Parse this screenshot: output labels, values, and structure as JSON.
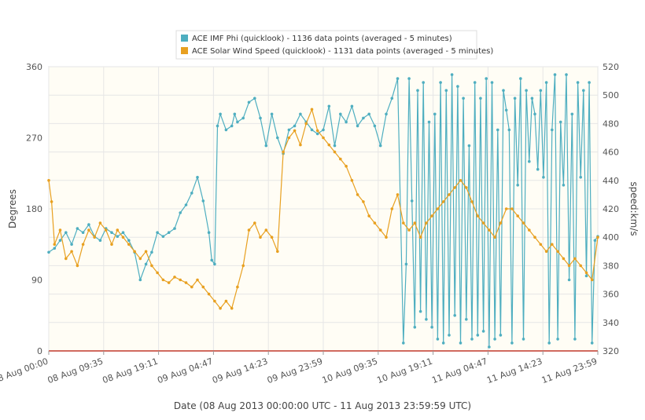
{
  "chart_data": {
    "type": "line",
    "xlabel": "Date (08 Aug 2013 00:00:00 UTC - 11 Aug 2013 23:59:59 UTC)",
    "x_ticks": [
      "08 Aug 00:00",
      "08 Aug 09:35",
      "08 Aug 19:11",
      "09 Aug 04:47",
      "09 Aug 14:23",
      "09 Aug 23:59",
      "10 Aug 09:35",
      "10 Aug 19:11",
      "11 Aug 04:47",
      "11 Aug 14:23",
      "11 Aug 23:59"
    ],
    "xlim_hours": [
      0,
      96
    ],
    "y_left": {
      "label": "Degrees",
      "range": [
        0,
        360
      ],
      "ticks": [
        "0",
        "90",
        "180",
        "270",
        "360"
      ]
    },
    "y_right": {
      "label": "speed:km/s",
      "range": [
        320,
        520
      ],
      "ticks": [
        "320",
        "340",
        "360",
        "380",
        "400",
        "420",
        "440",
        "460",
        "480",
        "500",
        "520"
      ]
    },
    "grid": true,
    "legend_position": "top-center",
    "series": [
      {
        "name": "ACE IMF Phi (quicklook) - 1136 data points (averaged - 5 minutes)",
        "axis": "left",
        "color": "#4eaec0",
        "x": [
          0,
          1,
          2,
          3,
          4,
          5,
          6,
          7,
          8,
          9,
          10,
          11,
          12,
          13,
          14,
          15,
          16,
          17,
          18,
          19,
          20,
          21,
          22,
          23,
          24,
          25,
          26,
          27,
          28,
          28.5,
          29,
          29.5,
          30,
          31,
          32,
          32.5,
          33,
          34,
          35,
          36,
          37,
          38,
          39,
          40,
          41,
          42,
          43,
          44,
          45,
          46,
          47,
          48,
          49,
          50,
          51,
          52,
          53,
          54,
          55,
          56,
          57,
          58,
          59,
          60,
          61,
          62,
          62.5,
          63,
          63.5,
          64,
          64.5,
          65,
          65.5,
          66,
          66.5,
          67,
          67.5,
          68,
          68.5,
          69,
          69.5,
          70,
          70.5,
          71,
          71.5,
          72,
          72.5,
          73,
          73.5,
          74,
          74.5,
          75,
          75.5,
          76,
          76.5,
          77,
          77.5,
          78,
          78.5,
          79,
          79.5,
          80,
          80.5,
          81,
          81.5,
          82,
          82.5,
          83,
          83.5,
          84,
          84.5,
          85,
          85.5,
          86,
          86.5,
          87,
          87.5,
          88,
          88.5,
          89,
          89.5,
          90,
          90.5,
          91,
          91.5,
          92,
          92.5,
          93,
          93.5,
          94,
          94.5,
          95,
          95.5,
          96
        ],
        "values": [
          125,
          130,
          140,
          150,
          135,
          155,
          150,
          160,
          145,
          140,
          155,
          150,
          145,
          150,
          140,
          125,
          90,
          110,
          125,
          150,
          145,
          150,
          155,
          175,
          185,
          200,
          220,
          190,
          150,
          115,
          110,
          285,
          300,
          280,
          285,
          300,
          290,
          295,
          315,
          320,
          295,
          260,
          300,
          270,
          250,
          280,
          285,
          300,
          290,
          280,
          275,
          280,
          310,
          260,
          300,
          290,
          310,
          285,
          295,
          300,
          285,
          260,
          300,
          320,
          345,
          10,
          110,
          345,
          190,
          30,
          330,
          50,
          340,
          40,
          290,
          30,
          300,
          15,
          340,
          10,
          330,
          20,
          350,
          45,
          335,
          10,
          320,
          40,
          260,
          15,
          340,
          20,
          320,
          25,
          345,
          5,
          340,
          15,
          280,
          20,
          330,
          305,
          280,
          10,
          320,
          210,
          345,
          15,
          330,
          240,
          320,
          300,
          230,
          330,
          220,
          340,
          10,
          280,
          350,
          15,
          290,
          210,
          350,
          90,
          300,
          15,
          340,
          220,
          330,
          95,
          340,
          10,
          140,
          145
        ],
        "values_unit": "degrees"
      },
      {
        "name": "ACE Solar Wind Speed (quicklook) - 1131 data points (averaged - 5 minutes)",
        "axis": "right",
        "color": "#e8a020",
        "x": [
          0,
          0.5,
          1,
          2,
          3,
          4,
          5,
          6,
          7,
          8,
          9,
          10,
          11,
          12,
          13,
          14,
          15,
          16,
          17,
          18,
          19,
          20,
          21,
          22,
          23,
          24,
          25,
          26,
          27,
          28,
          29,
          30,
          31,
          32,
          33,
          34,
          35,
          36,
          37,
          38,
          39,
          40,
          41,
          42,
          43,
          44,
          45,
          46,
          47,
          48,
          49,
          50,
          51,
          52,
          53,
          54,
          55,
          56,
          57,
          58,
          59,
          60,
          61,
          62,
          63,
          64,
          65,
          66,
          67,
          68,
          69,
          70,
          71,
          72,
          73,
          74,
          75,
          76,
          77,
          78,
          79,
          80,
          81,
          82,
          83,
          84,
          85,
          86,
          87,
          88,
          89,
          90,
          91,
          92,
          93,
          94,
          95,
          96
        ],
        "values": [
          440,
          425,
          395,
          405,
          385,
          390,
          380,
          395,
          405,
          400,
          410,
          405,
          395,
          405,
          400,
          395,
          390,
          385,
          390,
          380,
          375,
          370,
          368,
          372,
          370,
          368,
          365,
          370,
          365,
          360,
          355,
          350,
          355,
          350,
          365,
          380,
          405,
          410,
          400,
          405,
          400,
          390,
          460,
          470,
          475,
          465,
          480,
          490,
          475,
          470,
          465,
          460,
          455,
          450,
          440,
          430,
          425,
          415,
          410,
          405,
          400,
          420,
          430,
          410,
          405,
          410,
          400,
          410,
          415,
          420,
          425,
          430,
          435,
          440,
          435,
          425,
          415,
          410,
          405,
          400,
          410,
          420,
          420,
          415,
          410,
          405,
          400,
          395,
          390,
          395,
          390,
          385,
          380,
          385,
          380,
          375,
          370,
          400
        ],
        "values_unit": "km/s"
      }
    ]
  }
}
